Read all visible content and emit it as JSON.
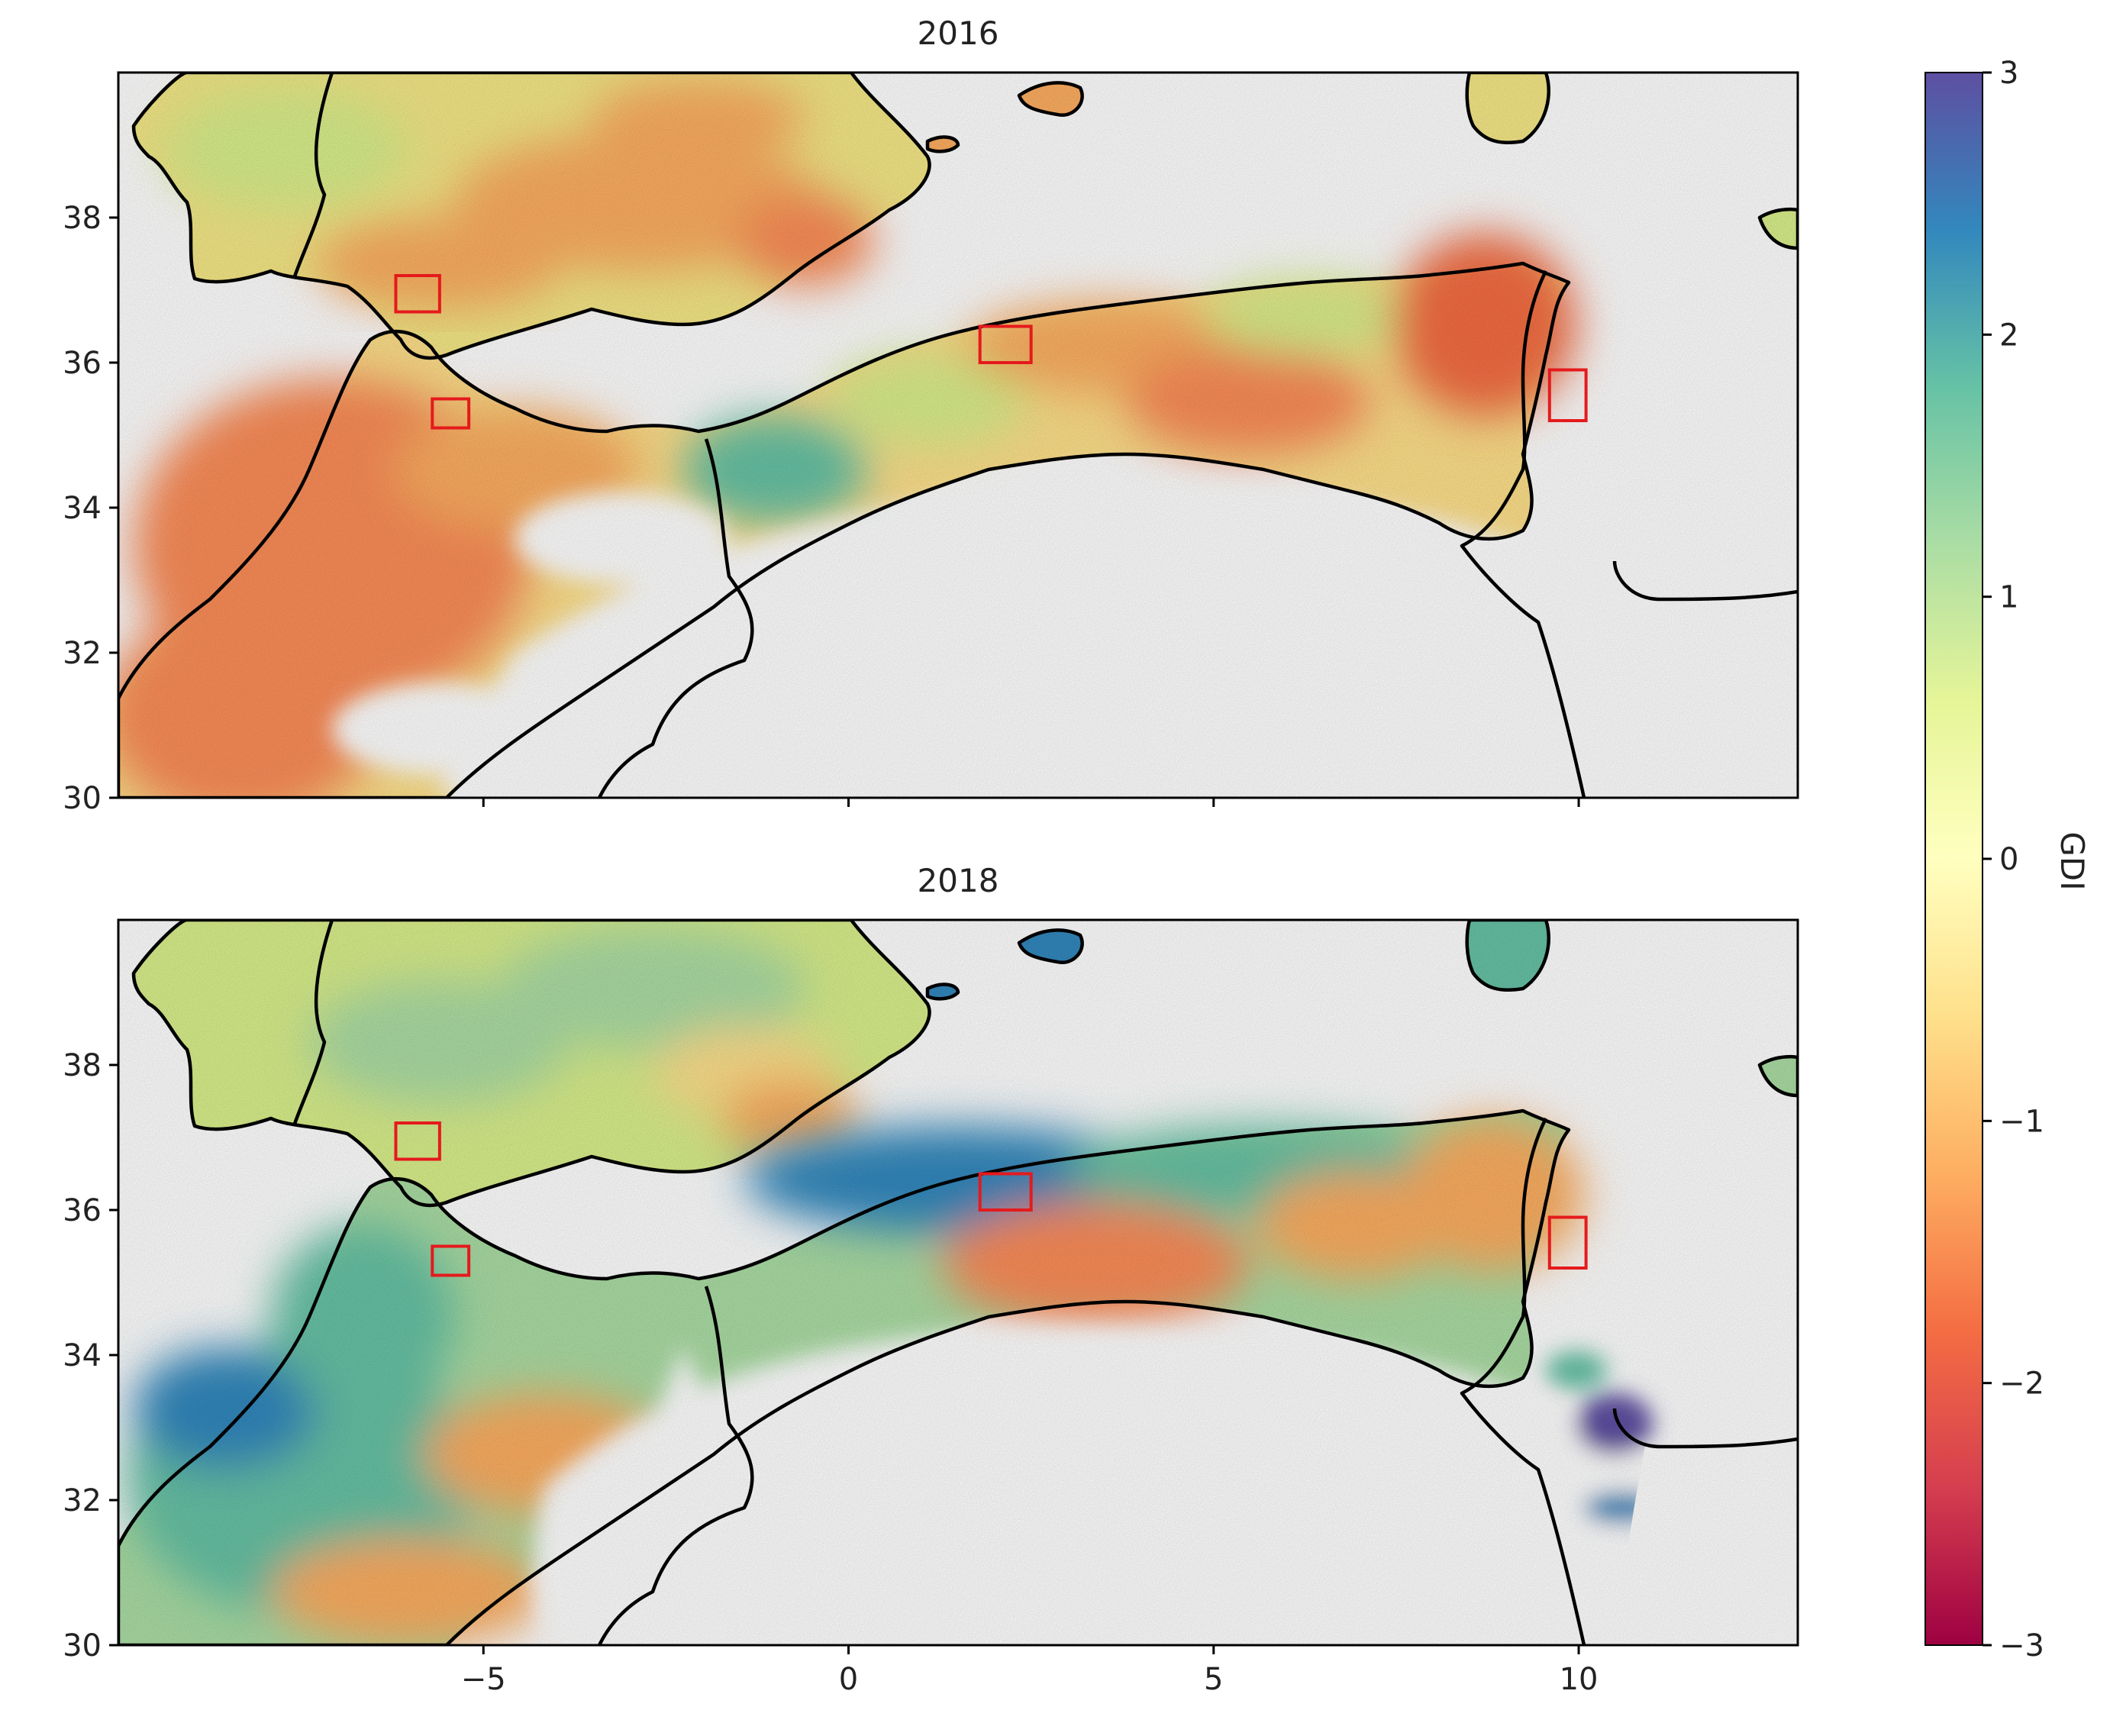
{
  "figure": {
    "panels": [
      {
        "title": "2016"
      },
      {
        "title": "2018"
      }
    ],
    "x_ticks": [
      "−5",
      "0",
      "5",
      "10"
    ],
    "y_ticks": [
      "30",
      "32",
      "34",
      "36",
      "38"
    ],
    "colorbar": {
      "label": "GDI",
      "ticks": [
        "3",
        "2",
        "1",
        "0",
        "−1",
        "−2",
        "−3"
      ],
      "range": [
        -3,
        3
      ],
      "colormap": "Spectral"
    },
    "colors": {
      "red_box": "#e41a1c",
      "land_outline": "#000000",
      "blue": "#2c7fb8",
      "green": "#66c2a5",
      "yellow": "#fee08b",
      "orange": "#fc8d59",
      "red": "#d53e4f",
      "purple": "#5e4fa2"
    }
  },
  "chart_data": {
    "type": "heatmap",
    "colorbar_label": "GDI",
    "colorbar_range": [
      -3,
      3
    ],
    "xlim": [
      -10,
      13
    ],
    "ylim": [
      30,
      40
    ],
    "panels": [
      {
        "title": "2016",
        "study_boxes": [
          {
            "lon": [
              -6.2,
              -5.6
            ],
            "lat": [
              36.7,
              37.2
            ]
          },
          {
            "lon": [
              -5.7,
              -5.2
            ],
            "lat": [
              35.1,
              35.5
            ]
          },
          {
            "lon": [
              1.8,
              2.5
            ],
            "lat": [
              36.0,
              36.5
            ]
          },
          {
            "lon": [
              9.6,
              10.1
            ],
            "lat": [
              35.2,
              35.9
            ]
          }
        ]
      },
      {
        "title": "2018",
        "study_boxes": [
          {
            "lon": [
              -6.2,
              -5.6
            ],
            "lat": [
              36.7,
              37.2
            ]
          },
          {
            "lon": [
              -5.7,
              -5.2
            ],
            "lat": [
              35.1,
              35.5
            ]
          },
          {
            "lon": [
              1.8,
              2.5
            ],
            "lat": [
              36.0,
              36.5
            ]
          },
          {
            "lon": [
              9.6,
              10.1
            ],
            "lat": [
              35.2,
              35.9
            ]
          }
        ]
      }
    ]
  }
}
